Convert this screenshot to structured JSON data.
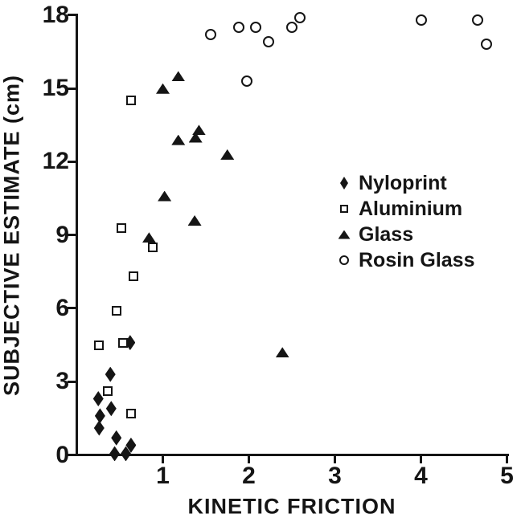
{
  "figure": {
    "background": "#ffffff",
    "ink_color": "#151515"
  },
  "chart_data": {
    "type": "scatter",
    "title": "",
    "xlabel": "KINETIC FRICTION",
    "ylabel": "SUBJECTIVE ESTIMATE (cm)",
    "xlim": [
      0,
      5
    ],
    "ylim": [
      0,
      18
    ],
    "x_ticks": [
      1,
      2,
      3,
      4,
      5
    ],
    "y_ticks": [
      0,
      3,
      6,
      9,
      12,
      15,
      18
    ],
    "grid": false,
    "legend_position": "middle-right",
    "series": [
      {
        "name": "Nyloprint",
        "marker": "filled-diamond",
        "points": [
          [
            0.62,
            4.6
          ],
          [
            0.39,
            3.3
          ],
          [
            0.25,
            2.3
          ],
          [
            0.4,
            1.9
          ],
          [
            0.27,
            1.6
          ],
          [
            0.26,
            1.1
          ],
          [
            0.46,
            0.7
          ],
          [
            0.44,
            0.05
          ],
          [
            0.63,
            0.4
          ],
          [
            0.57,
            0.05
          ]
        ]
      },
      {
        "name": "Aluminium",
        "marker": "open-square",
        "points": [
          [
            0.63,
            14.5
          ],
          [
            0.52,
            9.3
          ],
          [
            0.88,
            8.5
          ],
          [
            0.66,
            7.3
          ],
          [
            0.46,
            5.9
          ],
          [
            0.26,
            4.5
          ],
          [
            0.54,
            4.6
          ],
          [
            0.36,
            2.6
          ],
          [
            0.63,
            1.7
          ]
        ]
      },
      {
        "name": "Glass",
        "marker": "filled-triangle",
        "points": [
          [
            1.18,
            15.5
          ],
          [
            1.0,
            15.0
          ],
          [
            1.42,
            13.3
          ],
          [
            1.38,
            13.0
          ],
          [
            1.18,
            12.9
          ],
          [
            1.75,
            12.3
          ],
          [
            1.02,
            10.6
          ],
          [
            1.37,
            9.6
          ],
          [
            0.84,
            8.9
          ],
          [
            2.39,
            4.2
          ]
        ]
      },
      {
        "name": "Rosin Glass",
        "marker": "open-circle",
        "points": [
          [
            1.56,
            17.2
          ],
          [
            1.88,
            17.5
          ],
          [
            2.08,
            17.5
          ],
          [
            2.23,
            16.9
          ],
          [
            2.5,
            17.5
          ],
          [
            2.59,
            17.9
          ],
          [
            1.98,
            15.3
          ],
          [
            4.0,
            17.8
          ],
          [
            4.66,
            17.8
          ],
          [
            4.76,
            16.8
          ]
        ]
      }
    ]
  }
}
